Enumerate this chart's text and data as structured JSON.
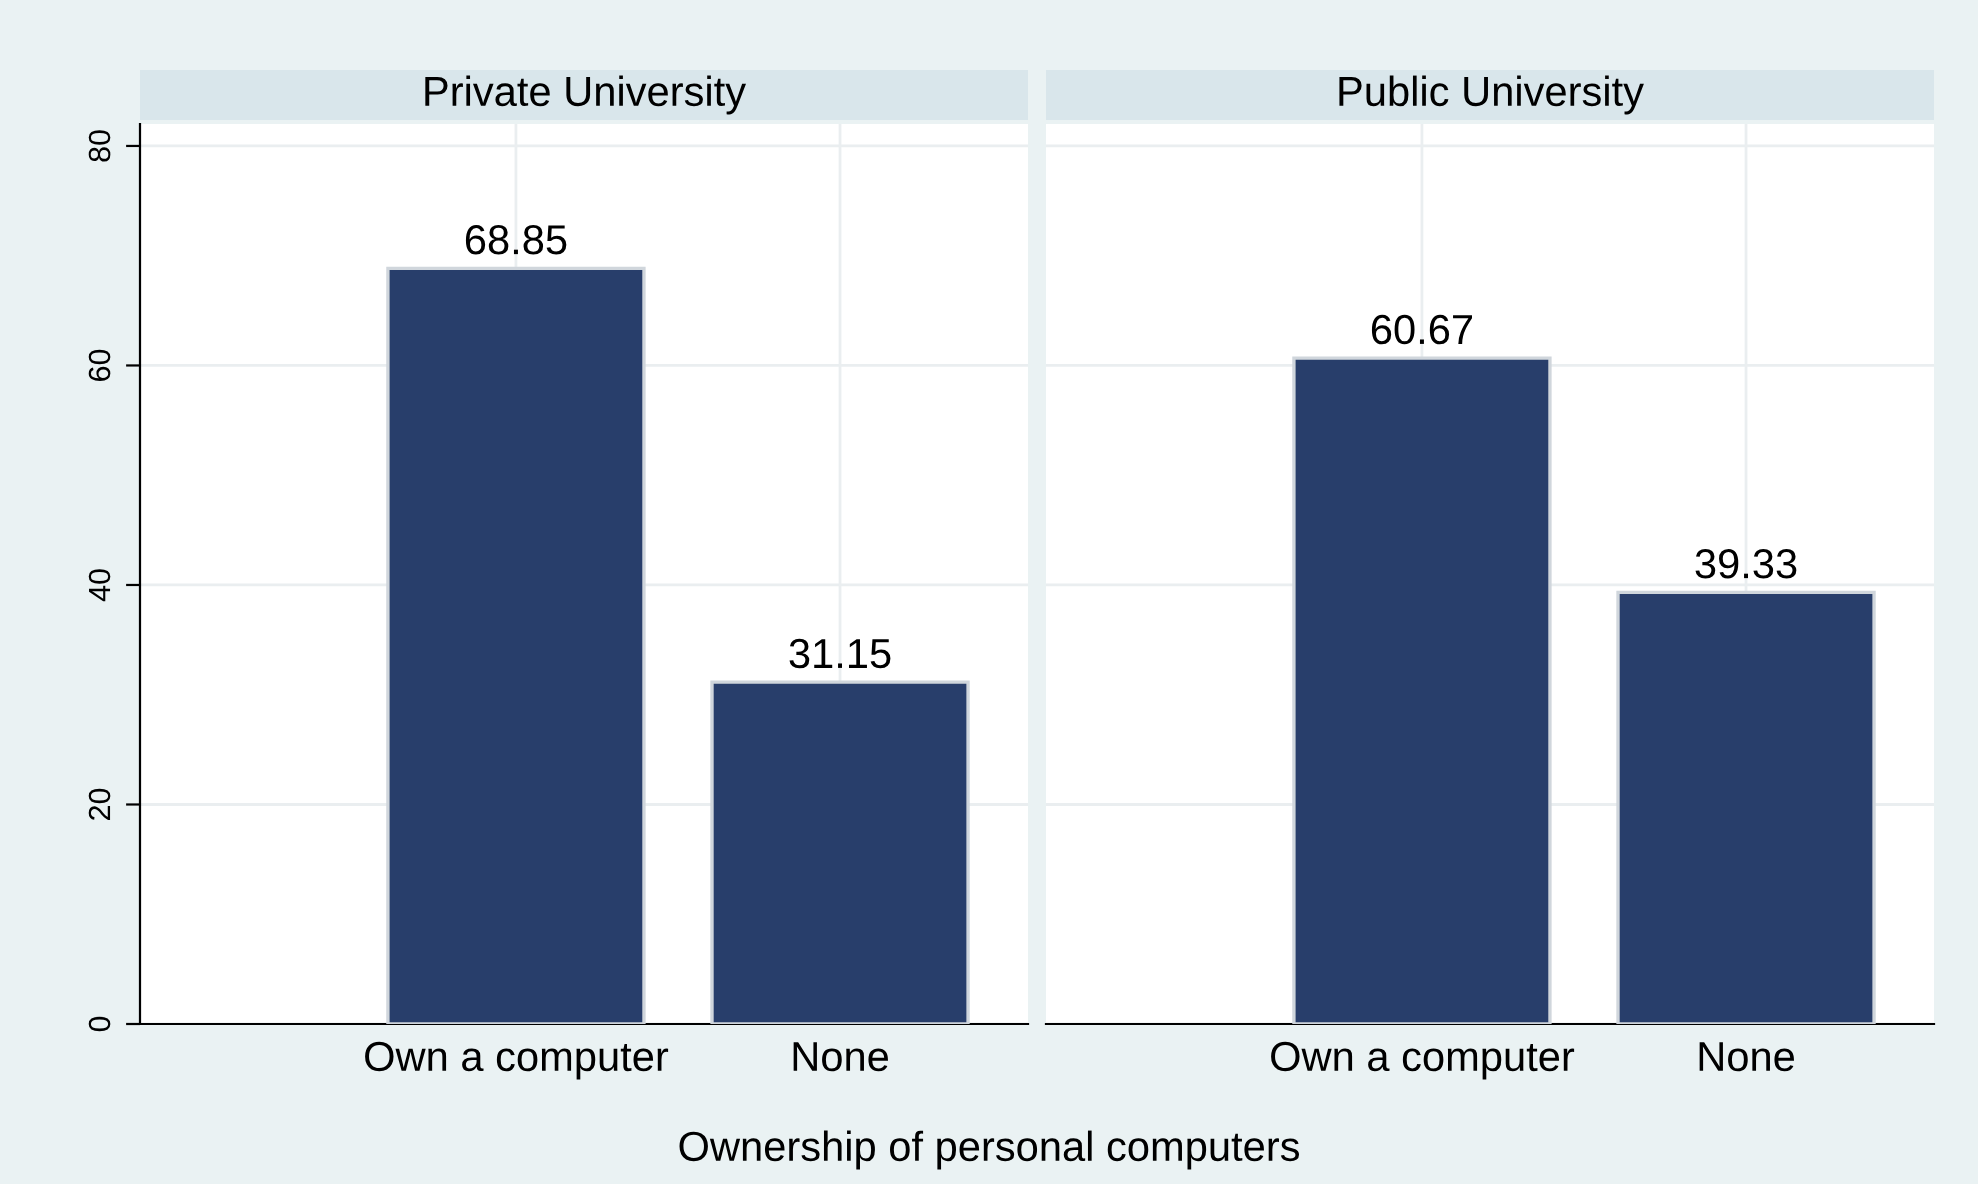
{
  "chart_data": [
    {
      "type": "bar",
      "title": "Private University",
      "xlabel": "Ownership of personal computers",
      "categories": [
        null,
        "Own a computer",
        "None"
      ],
      "values": [
        null,
        68.85,
        31.15
      ],
      "color": "#283e6b",
      "ylim": [
        0,
        82
      ],
      "yticks": [
        0,
        20,
        40,
        60,
        80
      ],
      "grid": true,
      "data_labels": true
    },
    {
      "type": "bar",
      "title": "Public University",
      "categories": [
        null,
        "Own a computer",
        "None"
      ],
      "values": [
        null,
        60.67,
        39.33
      ],
      "color": "#283e6b",
      "ylim": [
        0,
        82
      ],
      "yticks": [
        0,
        20,
        40,
        60,
        80
      ],
      "grid": true,
      "data_labels": true,
      "tick_labels": "x"
    }
  ]
}
